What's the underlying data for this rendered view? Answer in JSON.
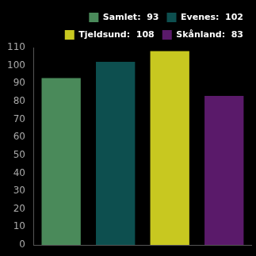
{
  "chart_data": {
    "type": "bar",
    "categories": [
      null,
      null,
      null,
      null
    ],
    "series": [
      {
        "name": "Samlet:  93",
        "color": "#4a8a5a",
        "values": [
          93,
          null,
          null,
          null
        ]
      },
      {
        "name": "Evenes:  102",
        "color": "#0d4f4f",
        "values": [
          null,
          102,
          null,
          null
        ]
      },
      {
        "name": "Tjeldsund:  108",
        "color": "#c8c820",
        "values": [
          null,
          null,
          108,
          null
        ]
      },
      {
        "name": "Skånland:  83",
        "color": "#5a1a6a",
        "values": [
          null,
          null,
          null,
          83
        ]
      }
    ],
    "ylim": [
      0,
      110
    ],
    "yticks": [
      0,
      10,
      20,
      30,
      40,
      50,
      60,
      70,
      80,
      90,
      100,
      110
    ],
    "grid": false,
    "legend": "upper right",
    "tick_labels": "y"
  }
}
